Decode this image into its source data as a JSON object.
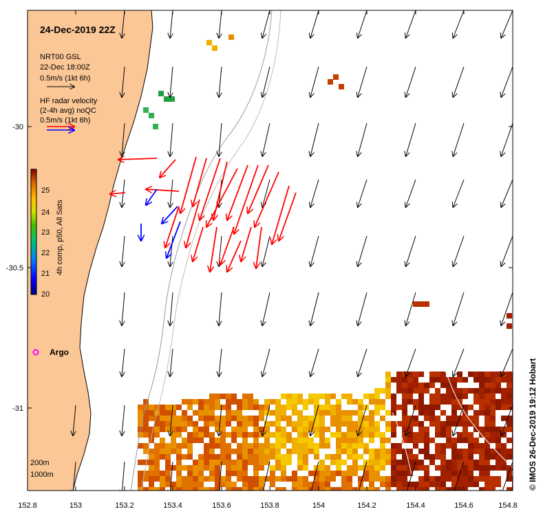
{
  "title": "24-Dec-2019 22Z",
  "legend": {
    "model_lines": [
      "NRT00 GSL",
      "22-Dec 18:00Z",
      "0.5m/s (1kt 6h)"
    ],
    "radar_lines": [
      "HF radar velocity",
      "(2-4h avg) noQC",
      "0.5m/s (1kt 6h)"
    ]
  },
  "colorbar": {
    "label": "4h comp, p50, All Sats",
    "ticks": [
      "25",
      "24",
      "23",
      "22",
      "21",
      "20"
    ]
  },
  "axes": {
    "x_ticks": [
      "152.8",
      "153",
      "153.2",
      "153.4",
      "153.6",
      "153.8",
      "154",
      "154.2",
      "154.4",
      "154.6",
      "154.8"
    ],
    "y_ticks": [
      "-30",
      "-30.5",
      "-31"
    ]
  },
  "argo_label": "Argo",
  "contour_labels": [
    "200m",
    "1000m"
  ],
  "credit": "© IMOS 26-Dec-2019 19:12 Hobart",
  "colors": {
    "land": "#fbc796",
    "radar_red": "#ff0000",
    "radar_blue": "#0000ff",
    "argo": "#ff00ff",
    "sst_orange": "#e08000",
    "sst_darkred": "#a02000",
    "sst_yellow": "#f5c800"
  }
}
